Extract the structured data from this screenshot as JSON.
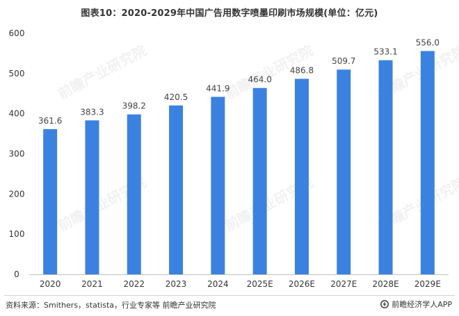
{
  "chart_data": {
    "type": "bar",
    "title": "图表10：2020-2029年中国广告用数字喷墨印刷市场规模(单位：亿元)",
    "xlabel": "",
    "ylabel": "",
    "categories": [
      "2020",
      "2021",
      "2022",
      "2023",
      "2024",
      "2025E",
      "2026E",
      "2027E",
      "2028E",
      "2029E"
    ],
    "values": [
      361.6,
      383.3,
      398.2,
      420.5,
      441.9,
      464.0,
      486.8,
      509.7,
      533.1,
      556.0
    ],
    "value_labels": [
      "361.6",
      "383.3",
      "398.2",
      "420.5",
      "441.9",
      "464.0",
      "486.8",
      "509.7",
      "533.1",
      "556.0"
    ],
    "ylim": [
      0,
      600
    ],
    "yticks": [
      "0",
      "100",
      "200",
      "300",
      "400",
      "500",
      "600"
    ],
    "grid": false,
    "bar_color": "#3b82e0"
  },
  "footer": {
    "source": "资料来源：Smithers，statista，行业专家等 前瞻产业研究院",
    "brand": "前瞻经济学人APP"
  },
  "watermark": {
    "text": "前瞻产业研究院"
  },
  "icons": {
    "brand_logo": "qianzhan-logo-icon"
  }
}
